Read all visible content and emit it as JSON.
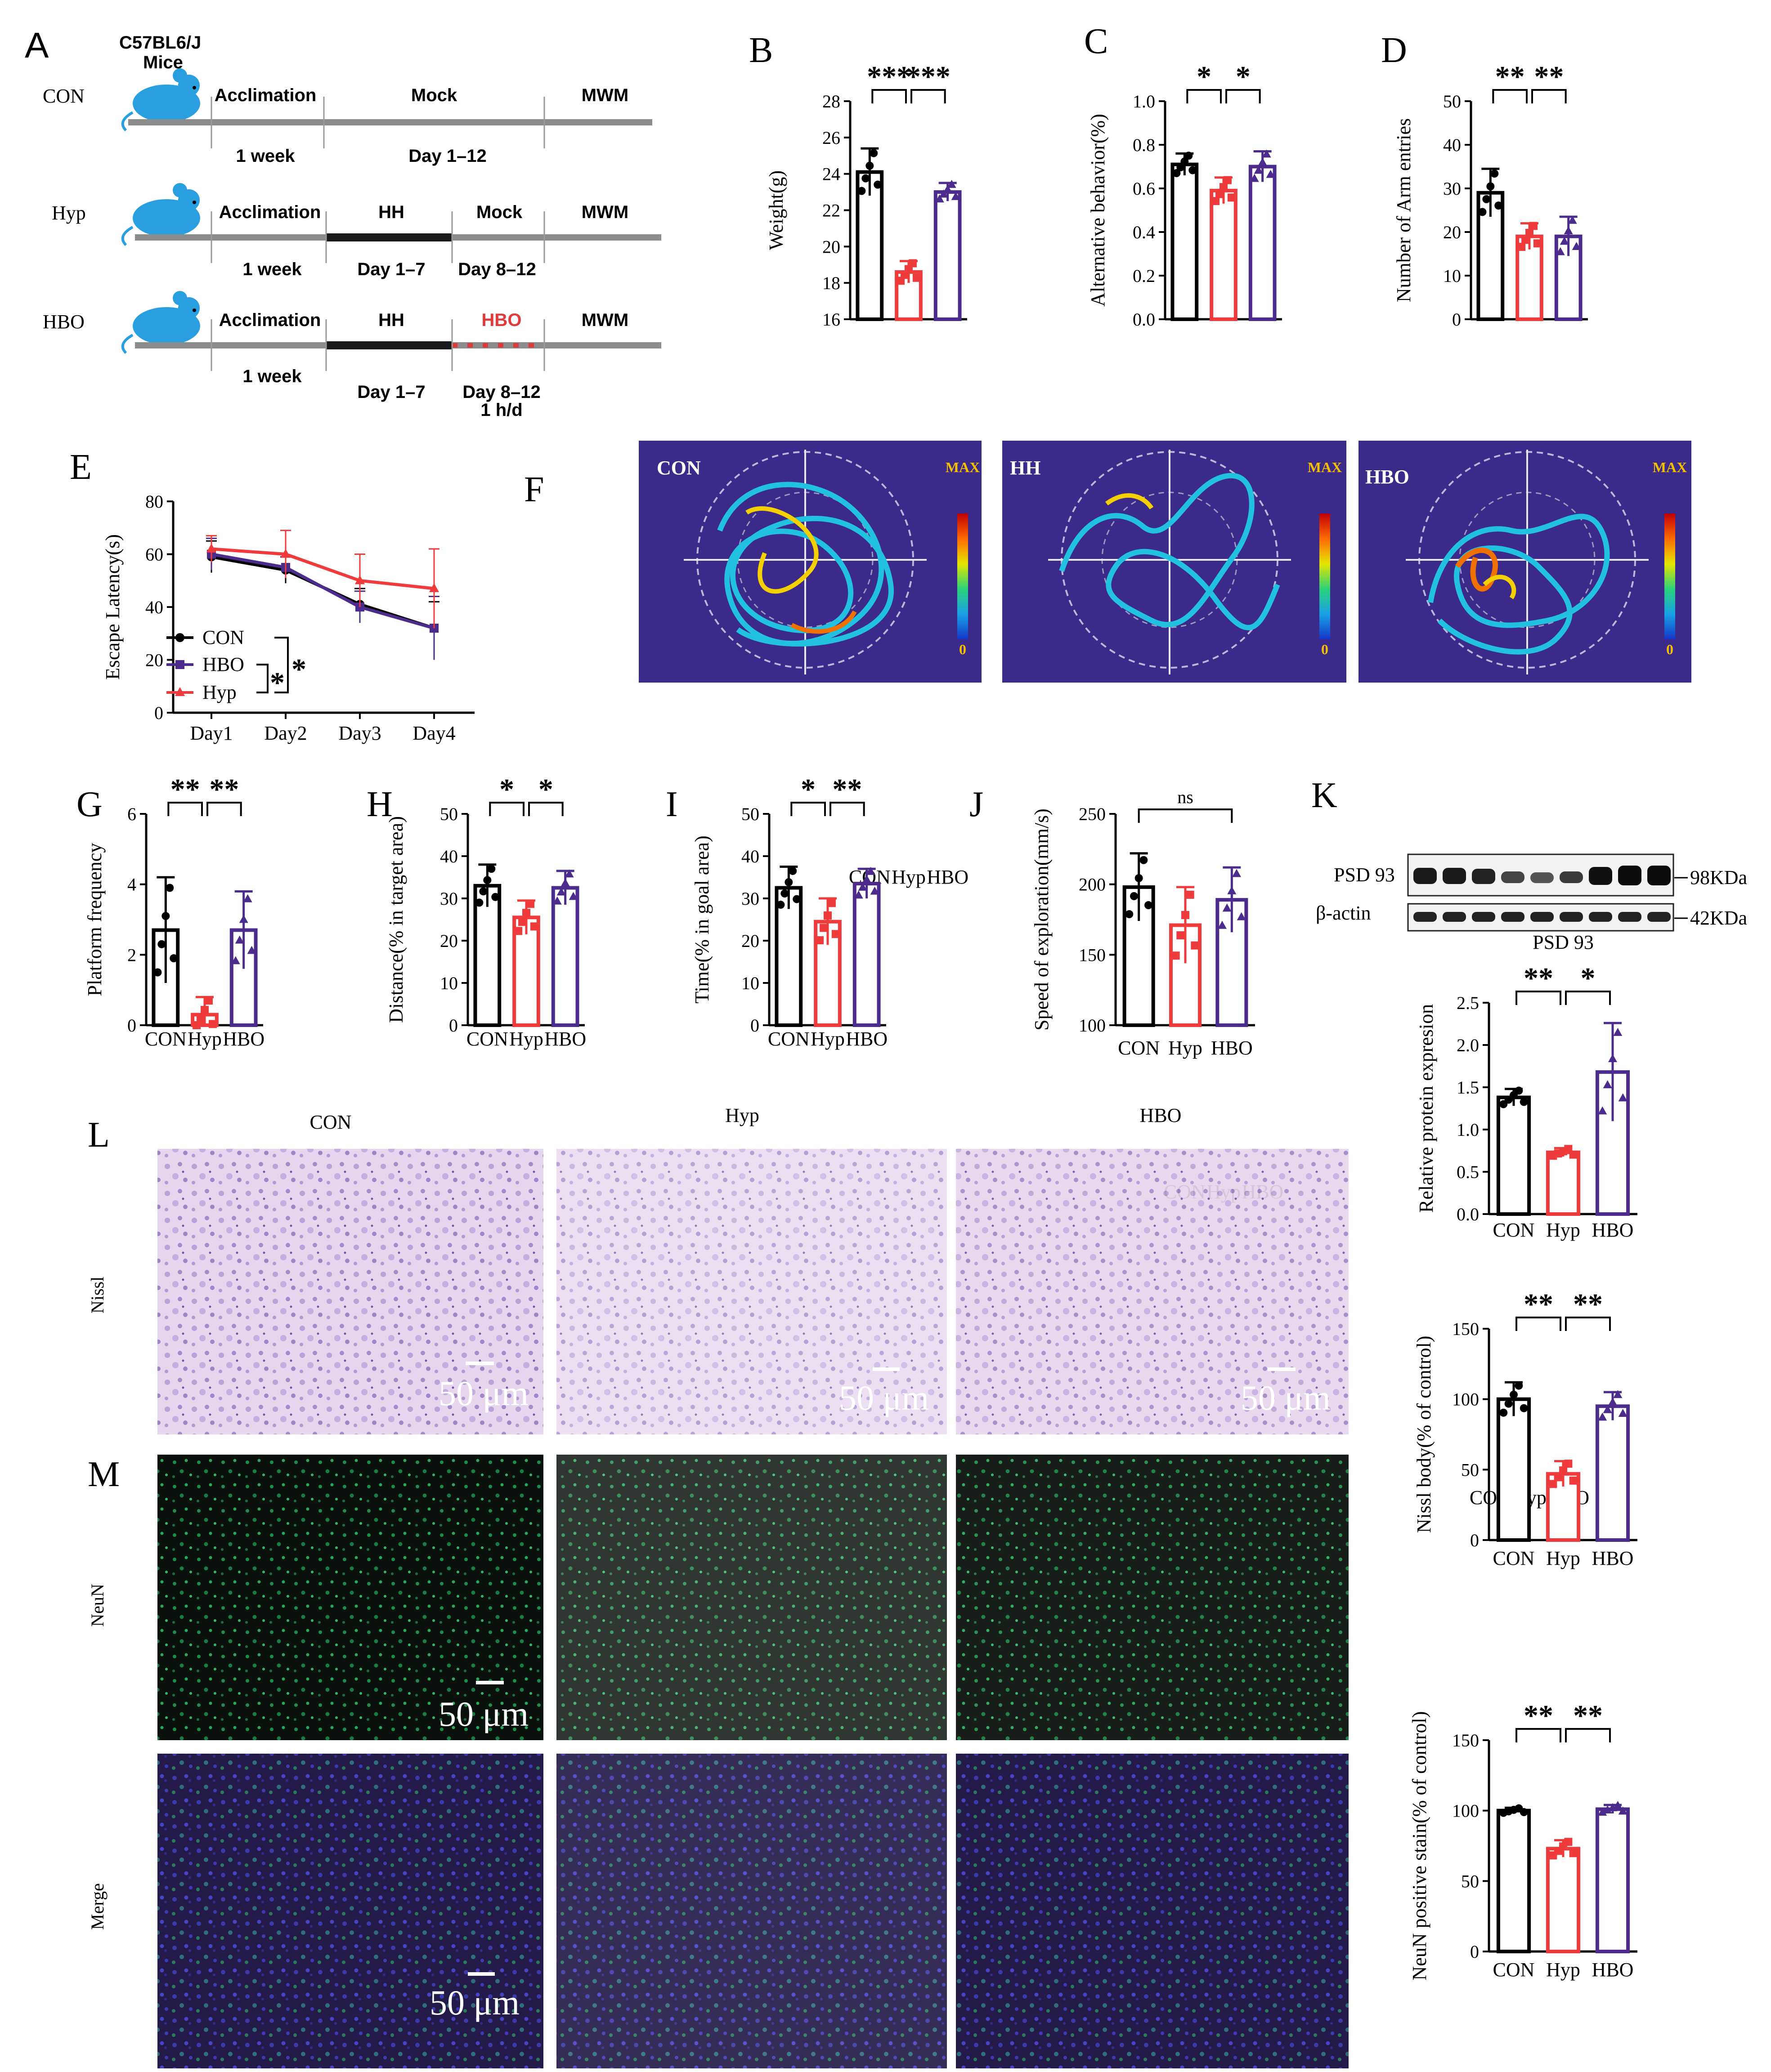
{
  "colors": {
    "con": "#000000",
    "hyp": "#ef3b3b",
    "hbo": "#4b2c8c",
    "track_bg": "#3b2a8a",
    "cell_stain": "#e8d8ef",
    "fluor_bg": "#0c110f",
    "merge_bg": "#241a4a"
  },
  "panel_letters": {
    "A": "A",
    "B": "B",
    "C": "C",
    "D": "D",
    "E": "E",
    "F": "F",
    "G": "G",
    "H": "H",
    "I": "I",
    "J": "J",
    "K": "K",
    "L": "L",
    "M": "M"
  },
  "timeline": {
    "strain_line1": "C57BL6/J",
    "strain_line2": "Mice",
    "rows": [
      {
        "group": "CON",
        "seg1": "Acclimation",
        "seg2": "Mock",
        "seg3": "",
        "seg4": "MWM",
        "sub1": "1 week",
        "sub2": "Day 1–12",
        "sub3": "",
        "sub4": ""
      },
      {
        "group": "Hyp",
        "seg1": "Acclimation",
        "seg2": "HH",
        "seg3": "Mock",
        "seg4": "MWM",
        "sub1": "1 week",
        "sub2": "Day 1–7",
        "sub3": "Day 8–12",
        "sub4": ""
      },
      {
        "group": "HBO",
        "seg1": "Acclimation",
        "seg2": "HH",
        "seg3": "HBO",
        "seg4": "MWM",
        "sub1": "1 week",
        "sub2": "Day 1–7",
        "sub3": "Day 8–12",
        "sub4": "1 h/d"
      }
    ]
  },
  "chart_data": [
    {
      "panel": "B",
      "type": "bar",
      "categories": [
        "CON",
        "Hyp",
        "HBO"
      ],
      "values": [
        24.1,
        18.6,
        23.0
      ],
      "errors": [
        1.3,
        0.6,
        0.5
      ],
      "ylabel": "Weight(g)",
      "ylim": [
        16,
        28
      ],
      "yticks": [
        16,
        18,
        20,
        22,
        24,
        26,
        28
      ],
      "sig": [
        "***",
        "***"
      ]
    },
    {
      "panel": "C",
      "type": "bar",
      "categories": [
        "CON",
        "Hyp",
        "HBO"
      ],
      "values": [
        0.71,
        0.59,
        0.7
      ],
      "errors": [
        0.05,
        0.06,
        0.07
      ],
      "ylabel": "Alternative behavior(%)",
      "ylim": [
        0,
        1.0
      ],
      "yticks": [
        "0.0",
        "0.2",
        "0.4",
        "0.6",
        "0.8",
        "1.0"
      ],
      "sig": [
        "*",
        "*"
      ]
    },
    {
      "panel": "D",
      "type": "bar",
      "categories": [
        "CON",
        "Hyp",
        "HBO"
      ],
      "values": [
        29,
        19,
        19
      ],
      "errors": [
        5.5,
        3.0,
        4.5
      ],
      "ylabel": "Number of Arm entries",
      "ylim": [
        0,
        50
      ],
      "yticks": [
        0,
        10,
        20,
        30,
        40,
        50
      ],
      "sig": [
        "**",
        "**"
      ]
    },
    {
      "panel": "E",
      "type": "line",
      "x": [
        "Day1",
        "Day2",
        "Day3",
        "Day4"
      ],
      "series": [
        {
          "name": "CON",
          "values": [
            59,
            54,
            41,
            32
          ],
          "errors": [
            6,
            5,
            6,
            10
          ]
        },
        {
          "name": "HBO",
          "values": [
            60,
            55,
            40,
            32
          ],
          "errors": [
            6,
            4,
            6,
            12
          ]
        },
        {
          "name": "Hyp",
          "values": [
            62,
            60,
            50,
            47
          ],
          "errors": [
            5,
            9,
            10,
            15
          ]
        }
      ],
      "ylabel": "Escape Latency(s)",
      "ylim": [
        0,
        80
      ],
      "yticks": [
        0,
        20,
        40,
        60,
        80
      ],
      "sig": [
        "*",
        "*"
      ]
    },
    {
      "panel": "G",
      "type": "bar",
      "categories": [
        "CON",
        "Hyp",
        "HBO"
      ],
      "values": [
        2.7,
        0.3,
        2.7
      ],
      "errors": [
        1.5,
        0.5,
        1.1
      ],
      "ylabel": "Platform frequency",
      "ylim": [
        0,
        6
      ],
      "yticks": [
        0,
        2,
        4,
        6
      ],
      "sig": [
        "**",
        "**"
      ]
    },
    {
      "panel": "H",
      "type": "bar",
      "categories": [
        "CON",
        "Hyp",
        "HBO"
      ],
      "values": [
        33,
        25.5,
        32.5
      ],
      "errors": [
        5,
        4,
        4
      ],
      "ylabel": "Distance(% in target area)",
      "ylim": [
        0,
        50
      ],
      "yticks": [
        0,
        10,
        20,
        30,
        40,
        50
      ],
      "sig": [
        "*",
        "*"
      ]
    },
    {
      "panel": "I",
      "type": "bar",
      "categories": [
        "CON",
        "Hyp",
        "HBO"
      ],
      "values": [
        32.5,
        24.5,
        33.5
      ],
      "errors": [
        5,
        5.5,
        3.5
      ],
      "ylabel": "Time(% in goal area)",
      "ylim": [
        0,
        50
      ],
      "yticks": [
        0,
        10,
        20,
        30,
        40,
        50
      ],
      "sig": [
        "*",
        "**"
      ]
    },
    {
      "panel": "J",
      "type": "bar",
      "categories": [
        "CON",
        "Hyp",
        "HBO"
      ],
      "values": [
        198,
        171,
        189
      ],
      "errors": [
        24,
        27,
        23
      ],
      "ylabel": "Speed of exploration(mm/s)",
      "ylim": [
        100,
        250
      ],
      "yticks": [
        100,
        150,
        200,
        250
      ],
      "sig": [
        "ns"
      ]
    },
    {
      "panel": "K",
      "type": "bar",
      "title": "PSD 93",
      "categories": [
        "CON",
        "Hyp",
        "HBO"
      ],
      "values": [
        1.38,
        0.73,
        1.68
      ],
      "errors": [
        0.1,
        0.05,
        0.58
      ],
      "ylabel": "Relative protein expresion",
      "ylim": [
        0,
        2.5
      ],
      "yticks": [
        "0.0",
        "0.5",
        "1.0",
        "1.5",
        "2.0",
        "2.5"
      ],
      "sig": [
        "**",
        "*"
      ]
    },
    {
      "panel": "L",
      "type": "bar",
      "categories": [
        "CON",
        "Hyp",
        "HBO"
      ],
      "values": [
        100,
        47,
        95
      ],
      "errors": [
        12,
        9,
        10
      ],
      "ylabel": "Nissl body(% of control)",
      "ylim": [
        0,
        150
      ],
      "yticks": [
        0,
        50,
        100,
        150
      ],
      "sig": [
        "**",
        "**"
      ]
    },
    {
      "panel": "M",
      "type": "bar",
      "categories": [
        "CON",
        "Hyp",
        "HBO"
      ],
      "values": [
        100,
        73,
        101
      ],
      "errors": [
        2,
        6,
        3
      ],
      "ylabel": "NeuN positive stain(% of control)",
      "ylim": [
        0,
        150
      ],
      "yticks": [
        0,
        50,
        100,
        150
      ],
      "sig": [
        "**",
        "**"
      ]
    }
  ],
  "heatmaps": {
    "titles": [
      "CON",
      "HH",
      "HBO"
    ],
    "scale_max": "MAX",
    "scale_min": "0"
  },
  "western": {
    "band1": "PSD 93",
    "band2": "β-actin",
    "size1": "98KDa",
    "size2": "42KDa"
  },
  "histology": {
    "col_titles": [
      "CON",
      "Hyp",
      "HBO"
    ],
    "row_nissl": "Nissl",
    "row_neun": "NeuN",
    "row_merge": "Merge",
    "scale": "50 μm"
  }
}
